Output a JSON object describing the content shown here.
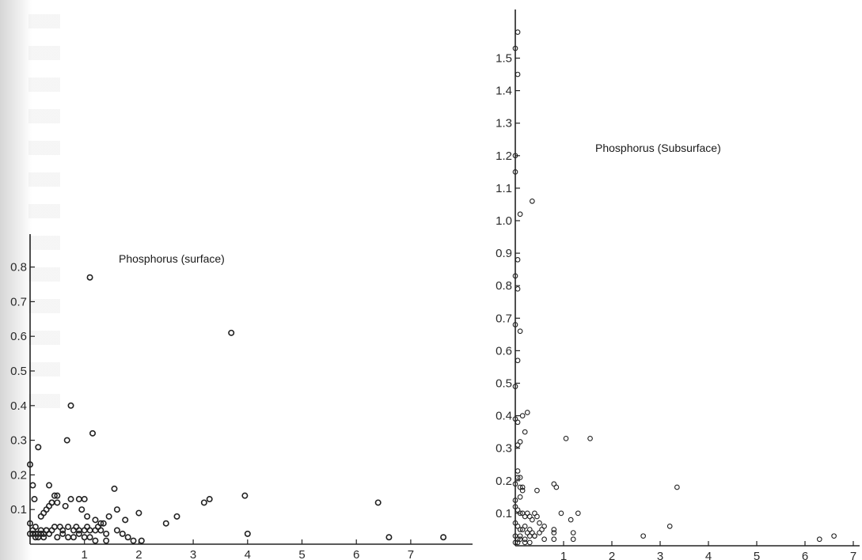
{
  "chart_data": [
    {
      "type": "scatter",
      "title": "Phosphorus (surface)",
      "xlabel": "",
      "ylabel": "",
      "xlim": [
        0,
        8.2
      ],
      "ylim": [
        0,
        0.85
      ],
      "x_ticks": [
        1,
        2,
        3,
        4,
        5,
        6,
        7
      ],
      "x_tick_labels": [
        "1",
        "2",
        "3",
        "4",
        "5",
        "6",
        "7"
      ],
      "y_ticks": [
        0.1,
        0.2,
        0.3,
        0.4,
        0.5,
        0.6,
        0.7,
        0.8
      ],
      "y_tick_labels": [
        "0.1",
        "0.2",
        "0.3",
        "0.4",
        "0.5",
        "0.6",
        "0.7",
        "0.8"
      ],
      "grid": false,
      "series": [
        {
          "x": [
            1.1,
            3.7,
            0.75,
            1.15,
            0.68,
            0.15,
            0.0,
            0.05,
            0.08,
            0.3,
            0.35,
            0.4,
            0.45,
            0.5,
            1.55,
            3.95,
            3.3,
            3.2,
            6.4,
            0.35,
            0.25,
            0.4,
            0.2,
            0.5,
            0.65,
            0.75,
            0.9,
            0.95,
            1.0,
            1.05,
            1.2,
            1.25,
            1.3,
            1.35,
            1.45,
            1.6,
            1.75,
            2.0,
            2.7,
            2.5,
            0.1,
            0.0,
            0.05,
            0.1,
            0.15,
            0.2,
            0.25,
            0.3,
            0.4,
            0.45,
            0.55,
            0.6,
            0.7,
            0.8,
            0.85,
            0.9,
            1.0,
            1.05,
            1.1,
            1.2,
            1.3,
            1.4,
            1.6,
            1.7,
            1.8,
            1.9,
            2.05,
            0.0,
            0.05,
            0.1,
            0.15,
            0.2,
            0.25,
            0.3,
            0.35,
            0.5,
            0.6,
            0.7,
            0.8,
            0.9,
            1.0,
            1.1,
            1.2,
            1.4,
            4.0,
            6.6,
            7.6
          ],
          "y": [
            0.77,
            0.61,
            0.4,
            0.32,
            0.3,
            0.28,
            0.23,
            0.17,
            0.13,
            0.1,
            0.11,
            0.12,
            0.14,
            0.14,
            0.16,
            0.14,
            0.13,
            0.12,
            0.12,
            0.17,
            0.09,
            0.12,
            0.08,
            0.12,
            0.11,
            0.13,
            0.13,
            0.1,
            0.13,
            0.08,
            0.07,
            0.05,
            0.06,
            0.06,
            0.08,
            0.1,
            0.07,
            0.09,
            0.08,
            0.06,
            0.05,
            0.06,
            0.04,
            0.03,
            0.03,
            0.04,
            0.03,
            0.04,
            0.04,
            0.05,
            0.05,
            0.04,
            0.05,
            0.04,
            0.05,
            0.04,
            0.04,
            0.05,
            0.04,
            0.04,
            0.04,
            0.03,
            0.04,
            0.03,
            0.02,
            0.01,
            0.01,
            0.03,
            0.03,
            0.02,
            0.02,
            0.03,
            0.02,
            0.04,
            0.03,
            0.02,
            0.03,
            0.02,
            0.02,
            0.03,
            0.02,
            0.02,
            0.01,
            0.01,
            0.03,
            0.02,
            0.02
          ]
        }
      ]
    },
    {
      "type": "scatter",
      "title": "Phosphorus (Subsurface)",
      "xlabel": "",
      "ylabel": "",
      "xlim": [
        0,
        7.2
      ],
      "ylim": [
        0,
        1.6
      ],
      "x_ticks": [
        1,
        2,
        3,
        4,
        5,
        6,
        7
      ],
      "x_tick_labels": [
        "1",
        "2",
        "3",
        "4",
        "5",
        "6",
        "7"
      ],
      "y_ticks": [
        0.1,
        0.2,
        0.3,
        0.4,
        0.5,
        0.6,
        0.7,
        0.8,
        0.9,
        1.0,
        1.1,
        1.2,
        1.3,
        1.4,
        1.5
      ],
      "y_tick_labels": [
        "0.1",
        "0.2",
        "0.3",
        "0.4",
        "0.5",
        "0.6",
        "0.7",
        "0.8",
        "0.9",
        "1.0",
        "1.1",
        "1.2",
        "1.3",
        "1.4",
        "1.5"
      ],
      "grid": false,
      "series": [
        {
          "x": [
            0.05,
            0.0,
            0.05,
            0.0,
            0.0,
            0.1,
            0.35,
            0.05,
            0.0,
            0.05,
            0.0,
            0.1,
            0.05,
            0.0,
            0.0,
            0.05,
            0.15,
            0.25,
            0.2,
            0.1,
            0.05,
            0.05,
            0.1,
            0.05,
            0.0,
            0.1,
            0.15,
            0.15,
            0.1,
            0.0,
            1.05,
            1.55,
            3.35,
            0.8,
            0.85,
            0.45,
            1.3,
            0.95,
            0.0,
            0.05,
            0.1,
            0.15,
            0.2,
            0.25,
            0.3,
            0.35,
            0.4,
            0.45,
            0.5,
            0.6,
            0.8,
            1.15,
            0.0,
            0.05,
            0.1,
            0.15,
            0.2,
            0.25,
            0.3,
            0.35,
            0.4,
            0.5,
            0.55,
            0.8,
            1.2,
            3.2,
            0.0,
            0.05,
            0.1,
            0.2,
            0.3,
            0.4,
            0.6,
            0.8,
            1.2,
            2.65,
            6.3,
            6.6,
            0.0,
            0.05,
            0.1,
            0.2,
            0.3
          ],
          "y": [
            1.58,
            1.53,
            1.45,
            1.2,
            1.15,
            1.02,
            1.06,
            0.88,
            0.83,
            0.79,
            0.68,
            0.66,
            0.57,
            0.49,
            0.39,
            0.38,
            0.4,
            0.41,
            0.35,
            0.32,
            0.31,
            0.23,
            0.21,
            0.21,
            0.19,
            0.18,
            0.18,
            0.17,
            0.15,
            0.14,
            0.33,
            0.33,
            0.18,
            0.19,
            0.18,
            0.17,
            0.1,
            0.1,
            0.12,
            0.11,
            0.1,
            0.1,
            0.09,
            0.1,
            0.09,
            0.08,
            0.1,
            0.09,
            0.07,
            0.06,
            0.05,
            0.08,
            0.07,
            0.06,
            0.05,
            0.05,
            0.06,
            0.04,
            0.05,
            0.04,
            0.03,
            0.04,
            0.05,
            0.04,
            0.04,
            0.06,
            0.03,
            0.02,
            0.03,
            0.02,
            0.03,
            0.03,
            0.02,
            0.02,
            0.02,
            0.03,
            0.02,
            0.03,
            0.01,
            0.01,
            0.02,
            0.01,
            0.01
          ]
        }
      ]
    }
  ]
}
